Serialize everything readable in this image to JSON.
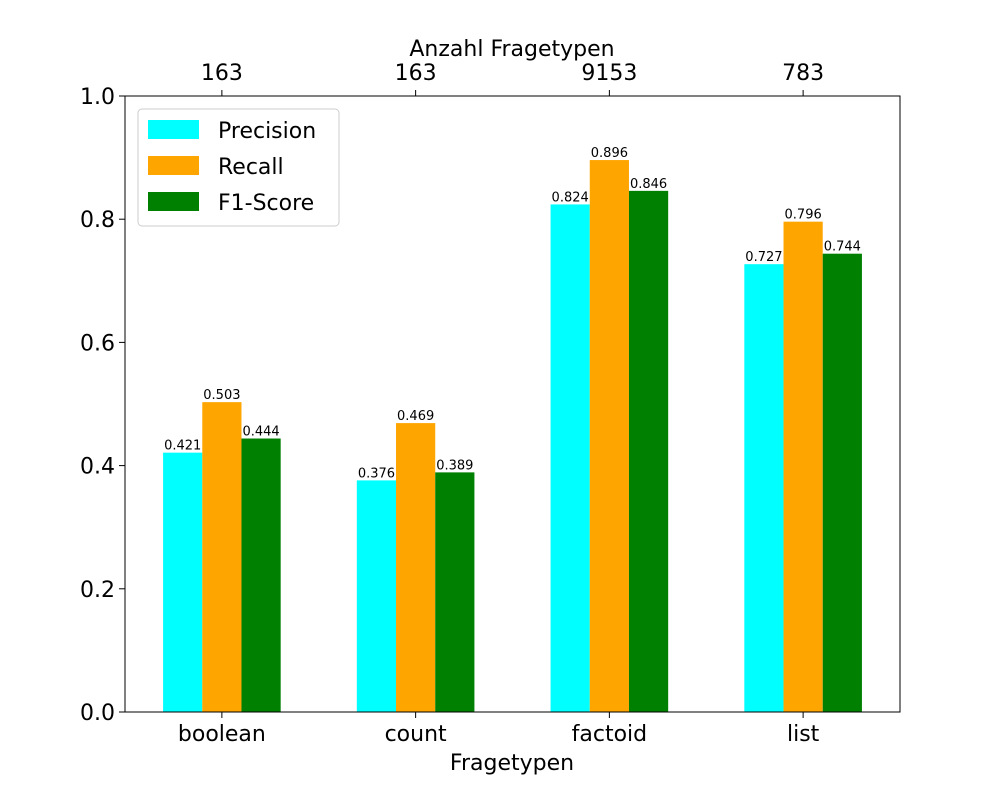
{
  "chart_data": {
    "type": "bar",
    "xlabel": "Fragetypen",
    "top_xlabel": "Anzahl Fragetypen",
    "categories": [
      "boolean",
      "count",
      "factoid",
      "list"
    ],
    "top_tick_labels": [
      "163",
      "163",
      "9153",
      "783"
    ],
    "ylim": [
      0.0,
      1.0
    ],
    "yticks": [
      "0.0",
      "0.2",
      "0.4",
      "0.6",
      "0.8",
      "1.0"
    ],
    "grid": false,
    "legend_position": "top-left",
    "series": [
      {
        "name": "Precision",
        "color": "#00ffff",
        "values": [
          0.421,
          0.376,
          0.824,
          0.727
        ],
        "labels": [
          "0.421",
          "0.376",
          "0.824",
          "0.727"
        ]
      },
      {
        "name": "Recall",
        "color": "#ffa500",
        "values": [
          0.503,
          0.469,
          0.896,
          0.796
        ],
        "labels": [
          "0.503",
          "0.469",
          "0.896",
          "0.796"
        ]
      },
      {
        "name": "F1-Score",
        "color": "#008000",
        "values": [
          0.444,
          0.389,
          0.846,
          0.744
        ],
        "labels": [
          "0.444",
          "0.389",
          "0.846",
          "0.744"
        ]
      }
    ]
  }
}
